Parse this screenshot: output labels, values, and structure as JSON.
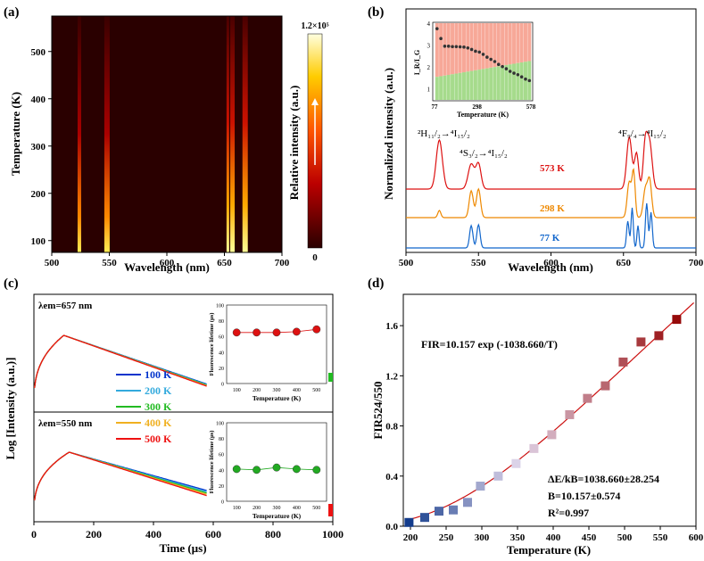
{
  "colors": {
    "series_100K": "#0033cc",
    "series_200K": "#33aadd",
    "series_300K": "#22bb22",
    "series_400K": "#f0b020",
    "series_500K": "#ee1111",
    "red": "#dd1111",
    "orange": "#ee8800",
    "blue": "#1166cc",
    "green_dot": "#22aa22",
    "red_dot": "#dd1111"
  },
  "chart_data": [
    {
      "panel": "(a)",
      "type": "heatmap",
      "title": "",
      "xlabel": "Wavelength (nm)",
      "ylabel": "Temperature (K)",
      "xlim": [
        500,
        700
      ],
      "ylim": [
        75,
        575
      ],
      "xticks": [
        500,
        550,
        600,
        650,
        700
      ],
      "yticks": [
        100,
        200,
        300,
        400,
        500
      ],
      "colorbar": {
        "label": "Relative intensity (a.u.)",
        "max_label": "1.2×10⁵",
        "min_label": "0"
      },
      "emission_bands_nm": [
        524,
        548,
        653,
        657,
        668
      ]
    },
    {
      "panel": "(b)",
      "type": "line",
      "xlabel": "Wavelength (nm)",
      "ylabel": "Normalized intensity (a.u.)",
      "xlim": [
        500,
        700
      ],
      "xticks": [
        500,
        550,
        600,
        650,
        700
      ],
      "series_labels": [
        "573 K",
        "298 K",
        "77 K"
      ],
      "annotations": [
        "²H₁₁/₂→⁴I₁₅/₂",
        "⁴S₃/₂→⁴I₁₅/₂",
        "⁴F₉/₄→⁴I₁₅/₂"
      ],
      "inset": {
        "xlabel": "Temperature (K)",
        "ylabel": "I_R/I_G",
        "xticks": [
          77,
          298,
          578
        ],
        "yticks": [
          1,
          2,
          3,
          4
        ],
        "ylim": [
          0.5,
          4
        ],
        "x": [
          90,
          110,
          130,
          150,
          170,
          190,
          210,
          230,
          250,
          270,
          290,
          310,
          330,
          350,
          370,
          390,
          410,
          430,
          450,
          470,
          490,
          510,
          530,
          550,
          570
        ],
        "y": [
          3.75,
          3.3,
          2.95,
          2.95,
          2.93,
          2.93,
          2.92,
          2.91,
          2.87,
          2.8,
          2.72,
          2.68,
          2.58,
          2.45,
          2.35,
          2.25,
          2.12,
          2.02,
          1.92,
          1.8,
          1.72,
          1.65,
          1.55,
          1.45,
          1.38
        ]
      }
    },
    {
      "panel": "(c)",
      "type": "line",
      "xlabel": "Time (µs)",
      "ylabel": "Log [Intensity (a.u.)]",
      "xlim": [
        0,
        1000
      ],
      "xticks": [
        0,
        200,
        400,
        600,
        800,
        1000
      ],
      "top_label": "λem=657 nm",
      "bottom_label": "λem=550 nm",
      "legend": [
        "100 K",
        "200 K",
        "300 K",
        "400 K",
        "500 K"
      ],
      "inset_top": {
        "xlabel": "Temperature (K)",
        "ylabel": "Fluorescence lifetime (µs)",
        "x": [
          100,
          200,
          300,
          400,
          500
        ],
        "y": [
          65,
          65,
          65,
          66,
          69
        ],
        "ylim": [
          0,
          100
        ],
        "xticks": [
          100,
          200,
          300,
          400,
          500
        ],
        "yticks": [
          0,
          20,
          40,
          60,
          80,
          100
        ]
      },
      "inset_bottom": {
        "xlabel": "Temperature (K)",
        "ylabel": "Fluorescence lifetime (µs)",
        "x": [
          100,
          200,
          300,
          400,
          500
        ],
        "y": [
          41,
          40,
          43,
          41,
          40
        ],
        "ylim": [
          0,
          100
        ],
        "xticks": [
          100,
          200,
          300,
          400,
          500
        ],
        "yticks": [
          0,
          20,
          40,
          60,
          80,
          100
        ]
      }
    },
    {
      "panel": "(d)",
      "type": "scatter",
      "xlabel": "Temperature (K)",
      "ylabel": "FIR524/550",
      "xlim": [
        190,
        600
      ],
      "ylim": [
        0,
        1.85
      ],
      "xticks": [
        200,
        250,
        300,
        350,
        400,
        450,
        500,
        550,
        600
      ],
      "yticks": [
        0.0,
        0.4,
        0.8,
        1.2,
        1.6
      ],
      "fit_equation": "FIR=10.157 exp (-1038.660/T)",
      "fit_params": [
        "ΔE/kB=1038.660±28.254",
        "B=10.157±0.574",
        "R²=0.997"
      ],
      "x": [
        198,
        220,
        240,
        260,
        280,
        298,
        323,
        348,
        373,
        398,
        423,
        448,
        473,
        498,
        523,
        548,
        573
      ],
      "y": [
        0.03,
        0.07,
        0.12,
        0.13,
        0.19,
        0.32,
        0.4,
        0.5,
        0.62,
        0.73,
        0.89,
        1.02,
        1.12,
        1.31,
        1.47,
        1.52,
        1.65
      ]
    }
  ]
}
